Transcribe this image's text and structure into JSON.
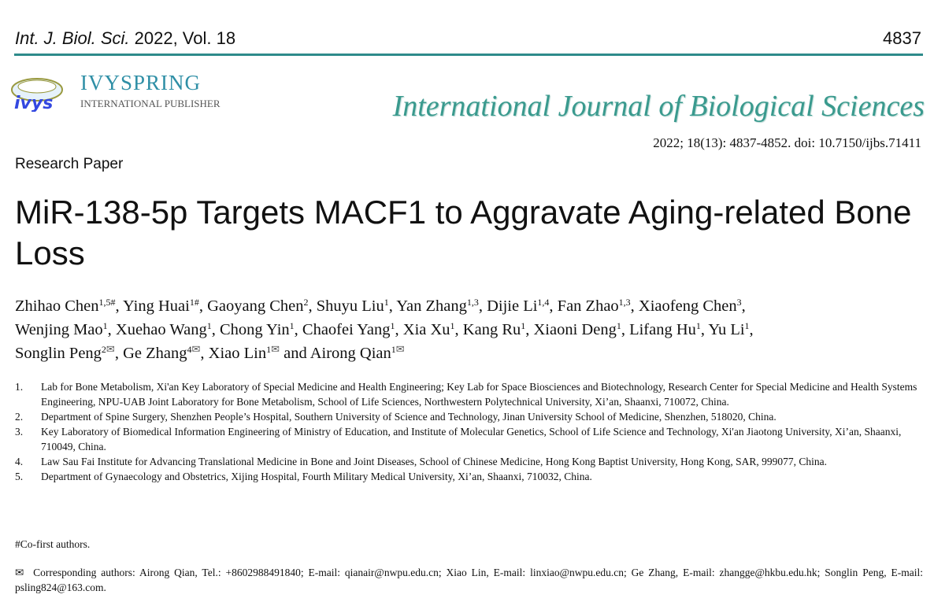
{
  "header": {
    "journal_abbrev": "Int. J. Biol. Sci.",
    "year_volume": "2022, Vol. 18",
    "page": "4837"
  },
  "publisher": {
    "logo_text": "ivys",
    "name": "IVYSPRING",
    "subtitle": "INTERNATIONAL PUBLISHER"
  },
  "journal_title": "International Journal of Biological Sciences",
  "citation": "2022; 18(13): 4837-4852. doi: 10.7150/ijbs.71411",
  "paper_type": "Research Paper",
  "title": "MiR-138-5p Targets MACF1 to Aggravate Aging-related Bone Loss",
  "authors": [
    [
      {
        "name": "Zhihao Chen",
        "sup": "1,5#"
      },
      {
        "name": "Ying Huai",
        "sup": "1#"
      },
      {
        "name": "Gaoyang Chen",
        "sup": "2"
      },
      {
        "name": "Shuyu Liu",
        "sup": "1"
      },
      {
        "name": "Yan Zhang",
        "sup": "1,3"
      },
      {
        "name": "Dijie Li",
        "sup": "1,4"
      },
      {
        "name": "Fan Zhao",
        "sup": "1,3"
      },
      {
        "name": "Xiaofeng Chen",
        "sup": "3"
      }
    ],
    [
      {
        "name": "Wenjing Mao",
        "sup": "1"
      },
      {
        "name": "Xuehao Wang",
        "sup": "1"
      },
      {
        "name": "Chong Yin",
        "sup": "1"
      },
      {
        "name": "Chaofei Yang",
        "sup": "1"
      },
      {
        "name": "Xia Xu",
        "sup": "1"
      },
      {
        "name": "Kang Ru",
        "sup": "1"
      },
      {
        "name": "Xiaoni Deng",
        "sup": "1"
      },
      {
        "name": "Lifang Hu",
        "sup": "1"
      },
      {
        "name": "Yu Li",
        "sup": "1"
      }
    ],
    [
      {
        "name": "Songlin Peng",
        "sup": "2",
        "mail": "✉"
      },
      {
        "name": "Ge Zhang",
        "sup": "4",
        "mail": "✉"
      },
      {
        "name": "Xiao Lin",
        "sup": "1",
        "mail": "✉"
      },
      {
        "name": "and Airong Qian",
        "sup": "1",
        "mail": "✉"
      }
    ]
  ],
  "affiliations": [
    {
      "n": "1.",
      "text": "Lab for Bone Metabolism, Xi'an Key Laboratory of Special Medicine and Health Engineering; Key Lab for Space Biosciences and Biotechnology, Research Center for Special Medicine and Health Systems Engineering, NPU-UAB Joint Laboratory for Bone Metabolism, School of Life Sciences, Northwestern Polytechnical University, Xi’an, Shaanxi, 710072, China."
    },
    {
      "n": "2.",
      "text": "Department of Spine Surgery, Shenzhen People’s Hospital, Southern University of Science and Technology, Jinan University School of Medicine, Shenzhen, 518020, China."
    },
    {
      "n": "3.",
      "text": "Key Laboratory of Biomedical Information Engineering of Ministry of Education, and Institute of Molecular Genetics, School of Life Science and Technology, Xi'an Jiaotong University, Xi’an, Shaanxi, 710049, China."
    },
    {
      "n": "4.",
      "text": "Law Sau Fai Institute for Advancing Translational Medicine in Bone and Joint Diseases, School of Chinese Medicine, Hong Kong Baptist University, Hong Kong, SAR, 999077, China."
    },
    {
      "n": "5.",
      "text": "Department of Gynaecology and Obstetrics, Xijing Hospital, Fourth Military Medical University, Xi’an, Shaanxi, 710032, China."
    }
  ],
  "co_first": "#Co-first authors.",
  "corresponding": {
    "icon": "envelope-icon",
    "symbol": "✉",
    "text": "Corresponding authors: Airong Qian, Tel.: +8602988491840; E-mail: qianair@nwpu.edu.cn; Xiao Lin, E-mail: linxiao@nwpu.edu.cn; Ge Zhang, E-mail: zhangge@hkbu.edu.hk; Songlin Peng, E-mail: psling824@163.com."
  },
  "colors": {
    "rule": "#2e8b8b",
    "journal_title": "#3a9a8e",
    "publisher": "#2f8fa6"
  }
}
